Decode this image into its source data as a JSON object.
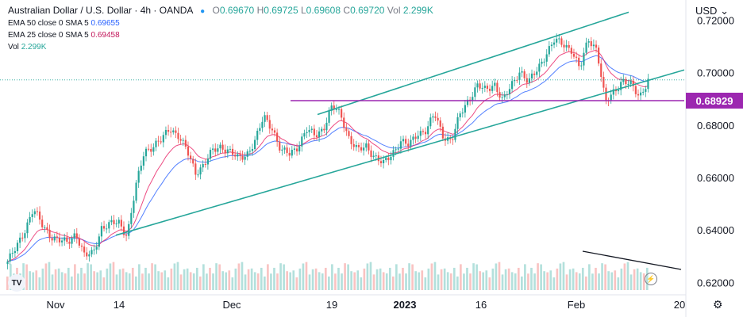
{
  "header": {
    "title": "Australian Dollar / U.S. Dollar · 4h · OANDA",
    "ohlc": [
      {
        "k": "O",
        "v": "0.69670"
      },
      {
        "k": "H",
        "v": "0.69725"
      },
      {
        "k": "L",
        "v": "0.69608"
      },
      {
        "k": "C",
        "v": "0.69720"
      }
    ],
    "vol_label": "Vol",
    "vol_value": "2.299K"
  },
  "indicators": [
    {
      "label": "EMA 50 close 0 SMA 5",
      "value": "0.69655",
      "color": "#2962ff"
    },
    {
      "label": "EMA 25 close 0 SMA 5",
      "value": "0.69458",
      "color": "#c2185b"
    },
    {
      "label": "Vol",
      "value": "2.299K",
      "color": "#26a69a"
    }
  ],
  "currency_menu": "USD",
  "chart_data": {
    "type": "candlestick",
    "symbol": "AUDUSD",
    "timeframe": "4h",
    "y_ticks": [
      "0.72000",
      "0.70000",
      "0.68000",
      "0.66000",
      "0.64000",
      "0.62000"
    ],
    "x_ticks": [
      "Nov",
      "14",
      "Dec",
      "19",
      "2023",
      "16",
      "Feb",
      "20"
    ],
    "price_label": "0.68929",
    "horizontal_level": 0.68929,
    "current_price": 0.6972,
    "price_path": [
      0.628,
      0.633,
      0.64,
      0.648,
      0.642,
      0.638,
      0.636,
      0.635,
      0.639,
      0.63,
      0.631,
      0.641,
      0.642,
      0.643,
      0.638,
      0.656,
      0.67,
      0.672,
      0.674,
      0.679,
      0.676,
      0.67,
      0.662,
      0.665,
      0.67,
      0.672,
      0.67,
      0.667,
      0.669,
      0.674,
      0.683,
      0.679,
      0.67,
      0.669,
      0.672,
      0.678,
      0.676,
      0.679,
      0.687,
      0.684,
      0.675,
      0.67,
      0.672,
      0.668,
      0.665,
      0.669,
      0.674,
      0.672,
      0.677,
      0.678,
      0.684,
      0.676,
      0.674,
      0.684,
      0.69,
      0.695,
      0.693,
      0.696,
      0.689,
      0.695,
      0.701,
      0.696,
      0.701,
      0.707,
      0.712,
      0.711,
      0.709,
      0.701,
      0.713,
      0.709,
      0.688,
      0.693,
      0.697,
      0.695,
      0.691,
      0.6972
    ],
    "volume_levels": [
      0.4,
      0.55,
      0.7,
      0.5,
      0.8,
      0.6,
      0.45,
      0.9,
      0.5,
      0.65,
      0.35,
      0.75,
      0.55,
      0.6,
      0.4,
      0.85,
      0.5,
      0.7,
      0.45,
      0.6
    ],
    "ema25_color": "#e91e63",
    "ema50_color": "#2962ff",
    "trendline_color": "#26a69a",
    "level_color": "#9c27b0",
    "up_color": "#26a69a",
    "down_color": "#ef5350"
  }
}
